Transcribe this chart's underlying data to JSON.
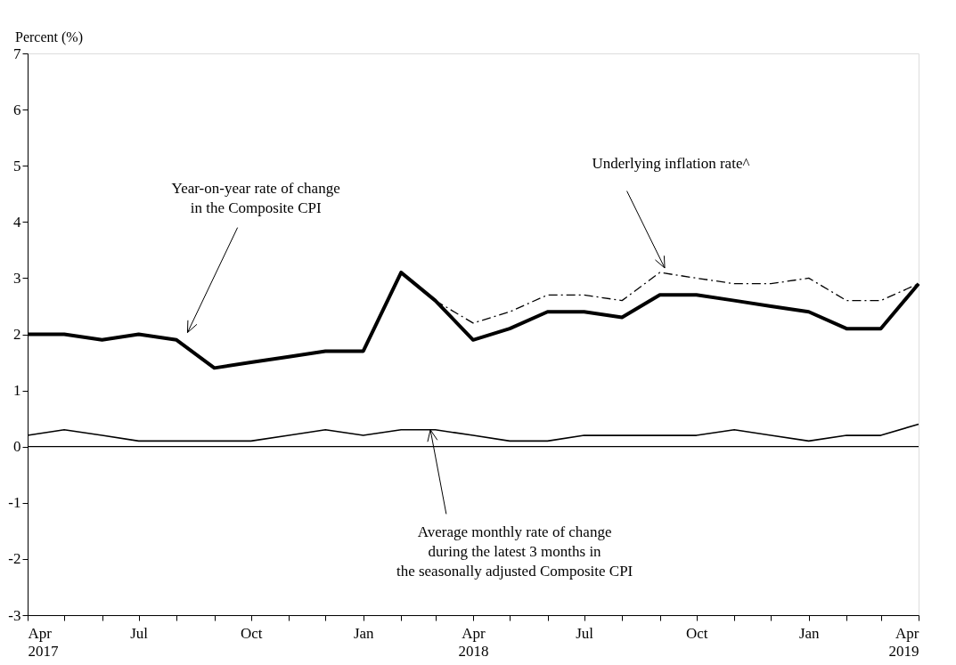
{
  "chart_data": {
    "type": "line",
    "x": [
      "2017-04",
      "2017-05",
      "2017-06",
      "2017-07",
      "2017-08",
      "2017-09",
      "2017-10",
      "2017-11",
      "2017-12",
      "2018-01",
      "2018-02",
      "2018-03",
      "2018-04",
      "2018-05",
      "2018-06",
      "2018-07",
      "2018-08",
      "2018-09",
      "2018-10",
      "2018-11",
      "2018-12",
      "2019-01",
      "2019-02",
      "2019-03",
      "2019-04"
    ],
    "series": [
      {
        "name": "Year-on-year rate of change\nin the Composite CPI",
        "color": "#000000",
        "line_style": "solid",
        "values": [
          2.0,
          2.0,
          1.9,
          2.0,
          1.9,
          1.4,
          1.5,
          1.6,
          1.7,
          1.7,
          3.1,
          2.6,
          1.9,
          2.1,
          2.4,
          2.4,
          2.3,
          2.7,
          2.7,
          2.6,
          2.5,
          2.4,
          2.1,
          2.1,
          2.9
        ]
      },
      {
        "name": "Underlying inflation rate^",
        "color": "#000000",
        "line_style": "dashed",
        "values": [
          null,
          null,
          null,
          null,
          null,
          null,
          null,
          null,
          null,
          null,
          null,
          2.6,
          2.2,
          2.4,
          2.7,
          2.7,
          2.6,
          3.1,
          3.0,
          2.9,
          2.9,
          3.0,
          2.6,
          2.6,
          2.9
        ]
      },
      {
        "name": "Average monthly rate of change\nduring the latest 3 months in\nthe seasonally adjusted Composite CPI",
        "color": "#000000",
        "line_style": "solid",
        "values": [
          0.2,
          0.3,
          0.2,
          0.1,
          0.1,
          0.1,
          0.1,
          0.2,
          0.3,
          0.2,
          0.3,
          0.3,
          0.2,
          0.1,
          0.1,
          0.2,
          0.2,
          0.2,
          0.2,
          0.3,
          0.2,
          0.1,
          0.2,
          0.2,
          0.4
        ]
      }
    ],
    "ylabel": "Percent (%)",
    "ylim": [
      -3,
      7
    ],
    "yticks": [
      -3,
      -2,
      -1,
      0,
      1,
      2,
      3,
      4,
      5,
      6,
      7
    ],
    "xlim": [
      "2017-04",
      "2019-04"
    ],
    "xticks": [
      {
        "value": "2017-04",
        "label": "Apr\n2017"
      },
      {
        "value": "2017-05",
        "label": null
      },
      {
        "value": "2017-06",
        "label": null
      },
      {
        "value": "2017-07",
        "label": "Jul"
      },
      {
        "value": "2017-08",
        "label": null
      },
      {
        "value": "2017-09",
        "label": null
      },
      {
        "value": "2017-10",
        "label": "Oct"
      },
      {
        "value": "2017-11",
        "label": null
      },
      {
        "value": "2017-12",
        "label": null
      },
      {
        "value": "2018-01",
        "label": "Jan"
      },
      {
        "value": "2018-02",
        "label": null
      },
      {
        "value": "2018-03",
        "label": null
      },
      {
        "value": "2018-04",
        "label": "Apr\n2018"
      },
      {
        "value": "2018-05",
        "label": null
      },
      {
        "value": "2018-06",
        "label": null
      },
      {
        "value": "2018-07",
        "label": "Jul"
      },
      {
        "value": "2018-08",
        "label": null
      },
      {
        "value": "2018-09",
        "label": null
      },
      {
        "value": "2018-10",
        "label": "Oct"
      },
      {
        "value": "2018-11",
        "label": null
      },
      {
        "value": "2018-12",
        "label": null
      },
      {
        "value": "2019-01",
        "label": "Jan"
      },
      {
        "value": "2019-02",
        "label": null
      },
      {
        "value": "2019-03",
        "label": null
      },
      {
        "value": "2019-04",
        "label": "Apr\n2019"
      }
    ],
    "ref_lines": [
      {
        "axis": "y",
        "value": 0,
        "color": "#000000"
      }
    ],
    "grid": false,
    "legend": false
  }
}
